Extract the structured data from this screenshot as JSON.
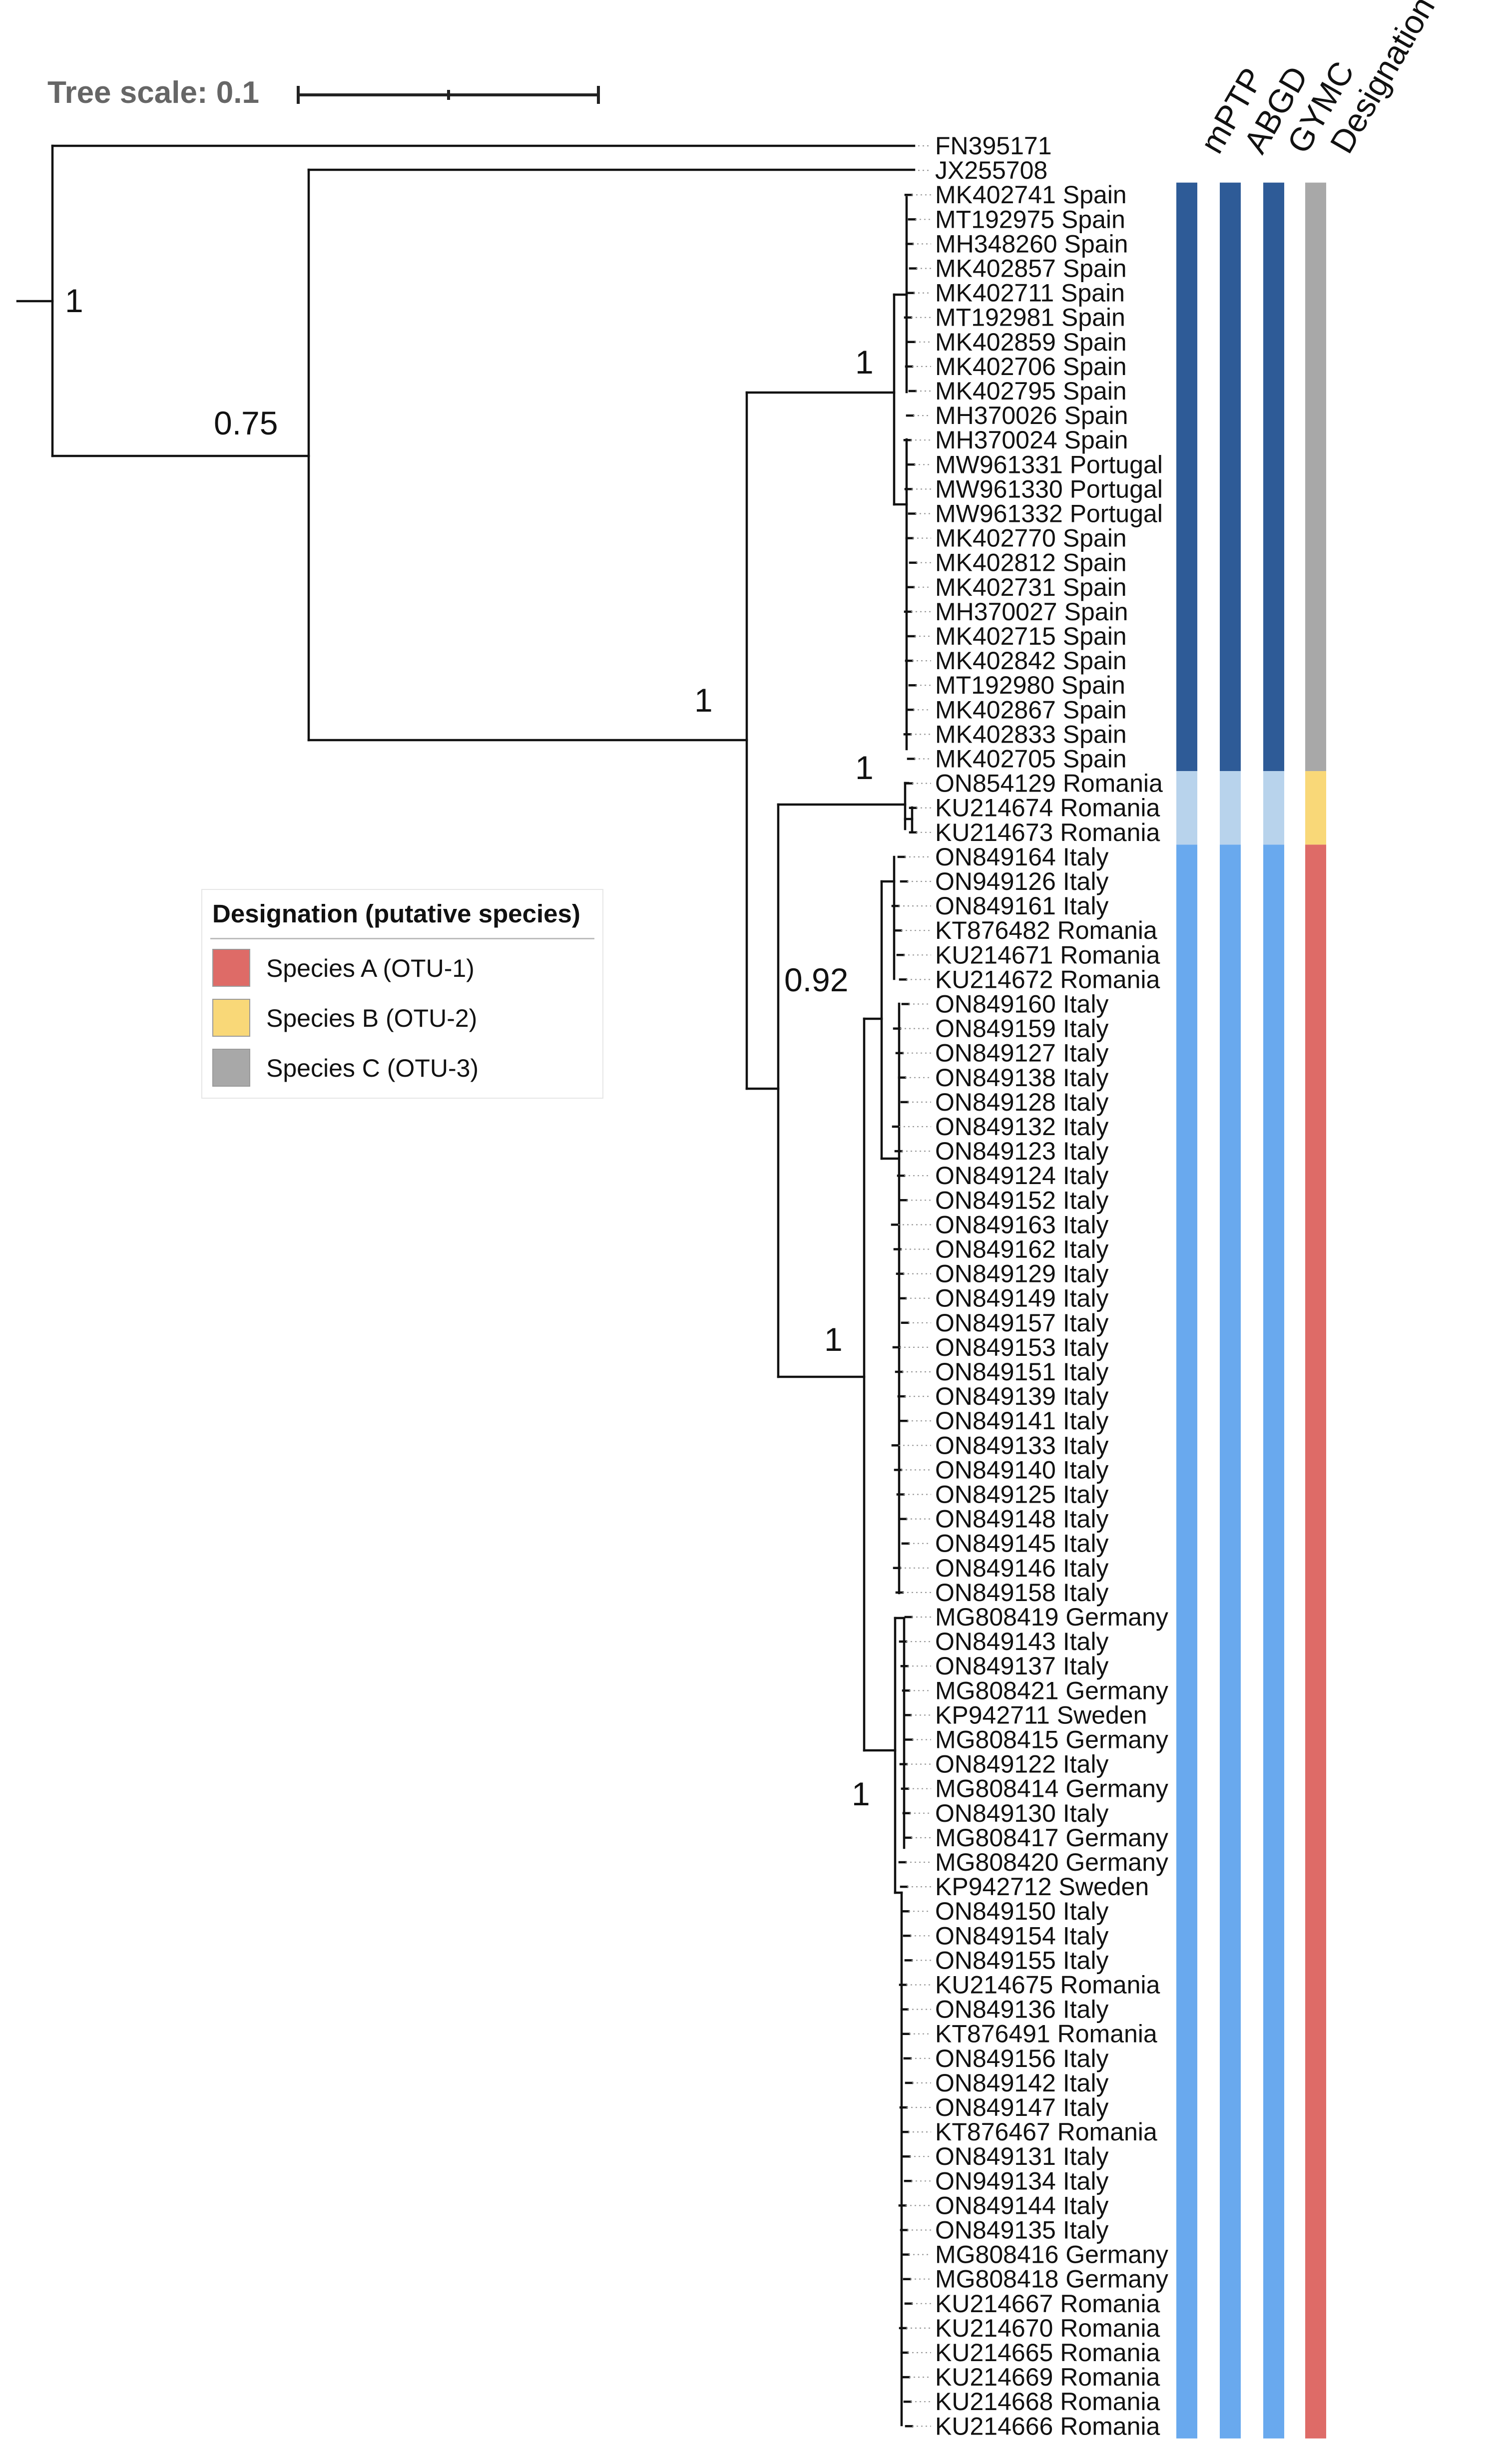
{
  "figure": {
    "tree_scale_label": "Tree scale: 0.1",
    "strip_headers": [
      "mPTP",
      "ABGD",
      "GYMC",
      "Designation"
    ],
    "colors": {
      "otu1_dark_blue": "#2e5b97",
      "otu2_light_blue": "#b8d3ec",
      "otu3_mid_blue": "#69a9ee",
      "species_a_red": "#de6b67",
      "species_b_yellow": "#f9d878",
      "species_c_gray": "#a8a8a8"
    },
    "support_values": [
      "1",
      "0.75",
      "1",
      "1",
      "1",
      "0.92",
      "1",
      "1"
    ],
    "legend": {
      "title": "Designation (putative species)",
      "items": [
        {
          "label": "Species A (OTU-1)",
          "color": "#de6b67"
        },
        {
          "label": "Species B (OTU-2)",
          "color": "#f9d878"
        },
        {
          "label": "Species C (OTU-3)",
          "color": "#a8a8a8"
        }
      ]
    },
    "leaves": [
      "FN395171",
      "JX255708",
      "MK402741 Spain",
      "MT192975 Spain",
      "MH348260 Spain",
      "MK402857 Spain",
      "MK402711 Spain",
      "MT192981 Spain",
      "MK402859 Spain",
      "MK402706 Spain",
      "MK402795 Spain",
      "MH370026 Spain",
      "MH370024 Spain",
      "MW961331 Portugal",
      "MW961330 Portugal",
      "MW961332 Portugal",
      "MK402770 Spain",
      "MK402812 Spain",
      "MK402731 Spain",
      "MH370027 Spain",
      "MK402715 Spain",
      "MK402842 Spain",
      "MT192980 Spain",
      "MK402867 Spain",
      "MK402833 Spain",
      "MK402705 Spain",
      "ON854129 Romania",
      "KU214674 Romania",
      "KU214673 Romania",
      "ON849164 Italy",
      "ON949126 Italy",
      "ON849161 Italy",
      "KT876482 Romania",
      "KU214671 Romania",
      "KU214672 Romania",
      "ON849160 Italy",
      "ON849159 Italy",
      "ON849127 Italy",
      "ON849138 Italy",
      "ON849128 Italy",
      "ON849132 Italy",
      "ON849123 Italy",
      "ON849124 Italy",
      "ON849152 Italy",
      "ON849163 Italy",
      "ON849162 Italy",
      "ON849129 Italy",
      "ON849149 Italy",
      "ON849157 Italy",
      "ON849153 Italy",
      "ON849151 Italy",
      "ON849139 Italy",
      "ON849141 Italy",
      "ON849133 Italy",
      "ON849140 Italy",
      "ON849125 Italy",
      "ON849148 Italy",
      "ON849145 Italy",
      "ON849146 Italy",
      "ON849158 Italy",
      "MG808419 Germany",
      "ON849143 Italy",
      "ON849137 Italy",
      "MG808421 Germany",
      "KP942711 Sweden",
      "MG808415 Germany",
      "ON849122 Italy",
      "MG808414 Germany",
      "ON849130 Italy",
      "MG808417 Germany",
      "MG808420 Germany",
      "KP942712 Sweden",
      "ON849150 Italy",
      "ON849154 Italy",
      "ON849155 Italy",
      "KU214675 Romania",
      "ON849136 Italy",
      "KT876491 Romania",
      "ON849156 Italy",
      "ON849142 Italy",
      "ON849147 Italy",
      "KT876467 Romania",
      "ON849131 Italy",
      "ON949134 Italy",
      "ON849144 Italy",
      "ON849135 Italy",
      "MG808416 Germany",
      "MG808418 Germany",
      "KU214667 Romania",
      "KU214670 Romania",
      "KU214665 Romania",
      "KU214669 Romania",
      "KU214668 Romania",
      "KU214666 Romania"
    ],
    "strips": [
      {
        "from_leaf": "MK402741 Spain",
        "to_leaf": "MK402705 Spain",
        "colors": [
          "#2e5b97",
          "#2e5b97",
          "#2e5b97",
          "#a8a8a8"
        ]
      },
      {
        "from_leaf": "ON854129 Romania",
        "to_leaf": "KU214673 Romania",
        "colors": [
          "#b8d3ec",
          "#b8d3ec",
          "#b8d3ec",
          "#f9d878"
        ]
      },
      {
        "from_leaf": "ON849164 Italy",
        "to_leaf": "KU214666 Romania",
        "colors": [
          "#69a9ee",
          "#69a9ee",
          "#69a9ee",
          "#de6b67"
        ]
      }
    ]
  }
}
